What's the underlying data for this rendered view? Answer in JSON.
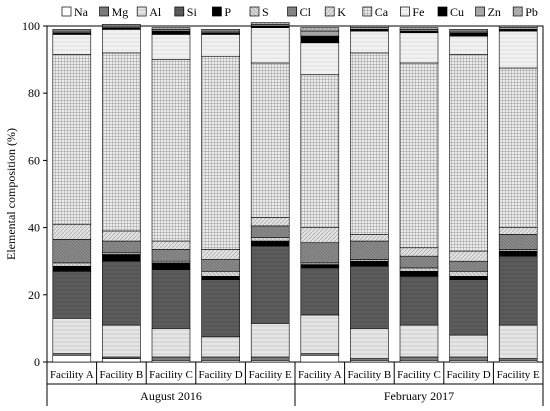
{
  "chart_data": {
    "type": "stacked_bar",
    "title": "",
    "ylabel": "Elemental composition (%)",
    "ylim": [
      0,
      100
    ],
    "yticks": [
      0,
      20,
      40,
      60,
      80,
      100
    ],
    "grid": false,
    "legend_position": "top",
    "categories": [
      "Facility A",
      "Facility B",
      "Facility C",
      "Facility D",
      "Facility E",
      "Facility A",
      "Facility B",
      "Facility C",
      "Facility D",
      "Facility E"
    ],
    "groups": [
      {
        "label": "August 2016",
        "start": 0,
        "end": 4
      },
      {
        "label": "February 2017",
        "start": 5,
        "end": 9
      }
    ],
    "series": [
      {
        "name": "Na",
        "fill": "na",
        "values": [
          2.0,
          1.0,
          0.5,
          0.5,
          0.5,
          2.0,
          0.5,
          0.5,
          0.5,
          0.5
        ]
      },
      {
        "name": "Mg",
        "fill": "mg",
        "values": [
          0.5,
          0.5,
          1.0,
          1.0,
          1.0,
          0.5,
          0.5,
          1.0,
          1.0,
          0.5
        ]
      },
      {
        "name": "Al",
        "fill": "al",
        "values": [
          10.5,
          9.5,
          8.5,
          6.0,
          10.0,
          11.5,
          9.0,
          9.5,
          6.5,
          10.0
        ]
      },
      {
        "name": "Si",
        "fill": "si",
        "values": [
          14.0,
          19.0,
          17.5,
          17.0,
          23.0,
          14.0,
          18.5,
          14.5,
          16.5,
          20.5
        ]
      },
      {
        "name": "P",
        "fill": "p",
        "values": [
          1.5,
          2.0,
          2.0,
          1.0,
          1.5,
          1.0,
          1.5,
          1.5,
          1.0,
          1.5
        ]
      },
      {
        "name": "S",
        "fill": "s",
        "values": [
          1.0,
          0.5,
          0.5,
          1.5,
          1.0,
          0.5,
          0.5,
          1.0,
          1.5,
          0.5
        ]
      },
      {
        "name": "Cl",
        "fill": "cl",
        "values": [
          7.0,
          3.5,
          3.5,
          3.5,
          3.5,
          6.0,
          5.5,
          3.5,
          3.0,
          4.5
        ]
      },
      {
        "name": "K",
        "fill": "k",
        "values": [
          4.5,
          3.0,
          2.5,
          3.0,
          2.5,
          4.5,
          2.0,
          2.5,
          3.0,
          2.0
        ]
      },
      {
        "name": "Ca",
        "fill": "ca",
        "values": [
          50.5,
          53.0,
          54.0,
          57.5,
          46.0,
          45.5,
          54.0,
          55.0,
          58.5,
          47.5
        ]
      },
      {
        "name": "Fe",
        "fill": "fe",
        "values": [
          6.0,
          7.0,
          7.5,
          6.5,
          10.5,
          9.5,
          6.5,
          9.0,
          5.5,
          11.0
        ]
      },
      {
        "name": "Cu",
        "fill": "cu",
        "values": [
          0.5,
          0.5,
          1.0,
          0.5,
          0.5,
          2.0,
          0.5,
          0.5,
          1.0,
          0.5
        ]
      },
      {
        "name": "Zn",
        "fill": "zn",
        "values": [
          0.5,
          0.5,
          0.5,
          0.5,
          0.5,
          1.5,
          0.5,
          0.5,
          0.5,
          0.5
        ]
      },
      {
        "name": "Pb",
        "fill": "pb",
        "values": [
          0.5,
          0.5,
          0.5,
          0.5,
          0.5,
          1.0,
          0.5,
          0.5,
          0.5,
          0.5
        ]
      }
    ]
  }
}
